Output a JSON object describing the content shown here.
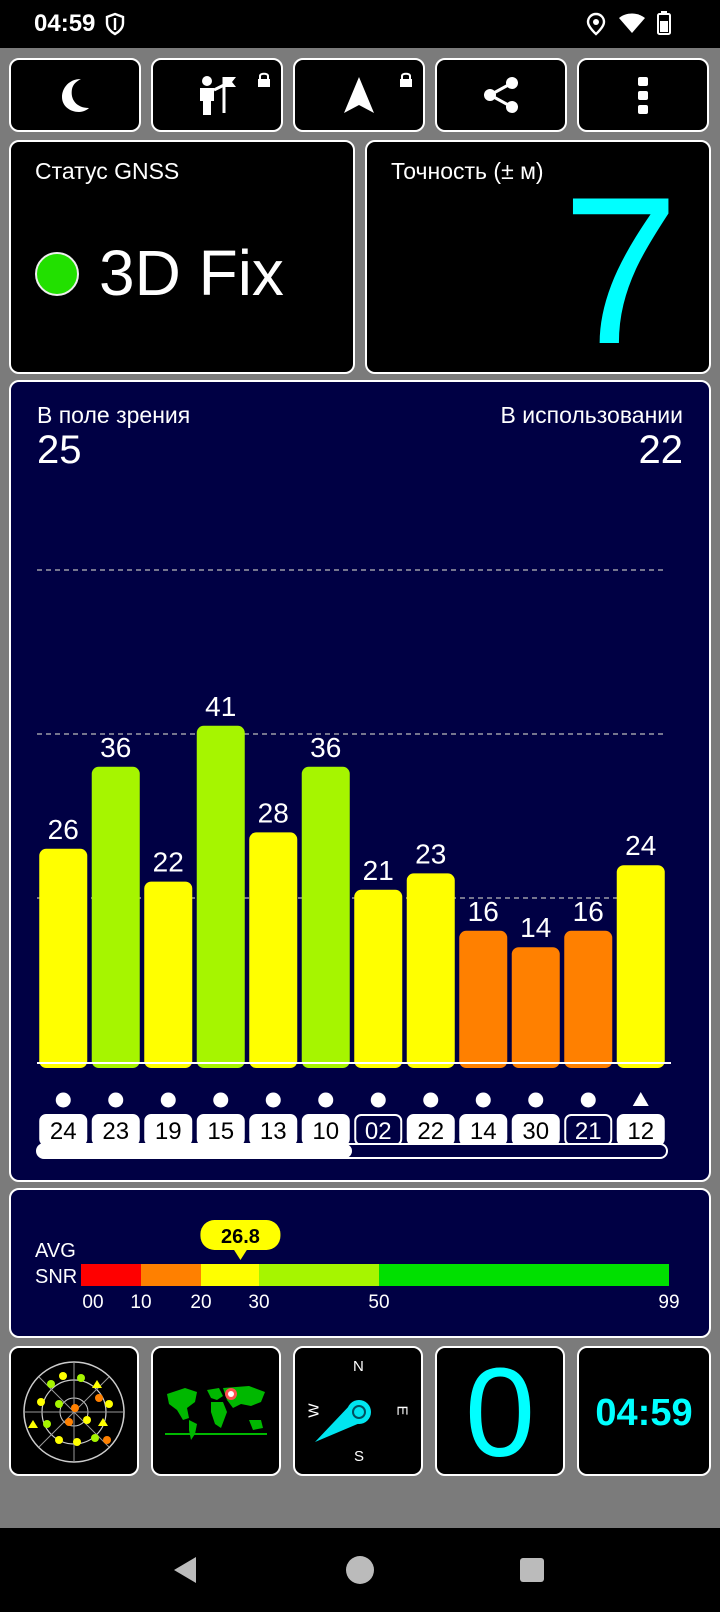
{
  "status_bar": {
    "time": "04:59"
  },
  "toolbar": {
    "icons": [
      "night-mode-icon",
      "poi-icon",
      "navigation-arrow-icon",
      "share-icon",
      "more-vert-icon"
    ],
    "lock_icons": [
      "lock-icon",
      "lock-icon"
    ]
  },
  "gnss": {
    "label": "Статус GNSS",
    "status": "3D Fix",
    "status_color": "#22e000"
  },
  "accuracy": {
    "label": "Точность (± м)",
    "value": "7",
    "value_color": "#00ffff"
  },
  "satellites": {
    "in_view_label": "В поле зрения",
    "in_view": "25",
    "in_use_label": "В использовании",
    "in_use": "22"
  },
  "chart_data": {
    "type": "bar",
    "categories": [
      "24",
      "23",
      "19",
      "15",
      "13",
      "10",
      "02",
      "22",
      "14",
      "30",
      "21",
      "12"
    ],
    "values": [
      26,
      36,
      22,
      41,
      28,
      36,
      21,
      23,
      16,
      14,
      16,
      24
    ],
    "colors": [
      "#ffff00",
      "#a6f500",
      "#ffff00",
      "#a6f500",
      "#ffff00",
      "#a6f500",
      "#ffff00",
      "#ffff00",
      "#ff8000",
      "#ff8000",
      "#ff8000",
      "#ffff00"
    ],
    "markers": [
      "circle",
      "circle",
      "circle",
      "circle",
      "circle",
      "circle",
      "circle",
      "circle",
      "circle",
      "circle",
      "circle",
      "triangle"
    ],
    "label_styles": [
      "filled",
      "filled",
      "filled",
      "filled",
      "filled",
      "filled",
      "outline",
      "filled",
      "filled",
      "filled",
      "outline",
      "filled"
    ],
    "ylim": [
      0,
      60
    ],
    "gridlines": [
      20,
      40,
      60
    ],
    "grid": true,
    "background": "#000044",
    "scroll_position": 0.5
  },
  "snr": {
    "label_line1": "AVG",
    "label_line2": "SNR",
    "avg": "26.8",
    "avg_value": 26.8,
    "ticks": [
      "00",
      "10",
      "20",
      "30",
      "50",
      "99"
    ],
    "segments": [
      {
        "from": 0,
        "to": 10,
        "color": "#ff0000"
      },
      {
        "from": 10,
        "to": 20,
        "color": "#ff8000"
      },
      {
        "from": 20,
        "to": 30,
        "color": "#ffff00"
      },
      {
        "from": 30,
        "to": 50,
        "color": "#a6f500"
      },
      {
        "from": 50,
        "to": 99,
        "color": "#00e000"
      }
    ]
  },
  "bottom_widgets": {
    "compass": {
      "n": "N",
      "e": "E",
      "s": "S",
      "w": "W"
    },
    "speed": "0",
    "clock": "04:59",
    "speed_color": "#00ffff"
  }
}
